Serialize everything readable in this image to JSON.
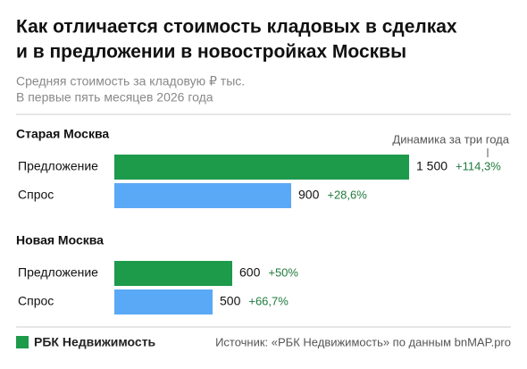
{
  "chart_data": {
    "type": "bar",
    "orientation": "horizontal",
    "title": [
      "Как отличается стоимость кладовых в сделках",
      "и в предложении в новостройках Москвы"
    ],
    "subtitle": [
      "Средняя стоимость за кладовую ₽ тыс.",
      "В первые пять месяцев 2026 года"
    ],
    "change_title": "Динамика за три года",
    "colors": [
      "#1e9a4b",
      "#5aa9f6"
    ],
    "groups": [
      {
        "name": "Старая Москва",
        "categories": [
          "Предложение",
          "Спрос"
        ],
        "values": [
          1500,
          900
        ],
        "value_labels": [
          "1 500",
          "900"
        ],
        "changes": [
          114.3,
          28.6
        ],
        "change_labels": [
          "+114,3%",
          "+28,6%"
        ]
      },
      {
        "name": "Новая Москва",
        "categories": [
          "Предложение",
          "Спрос"
        ],
        "values": [
          600,
          500
        ],
        "changes": [
          50,
          66.7
        ],
        "change_labels": [
          "+50%",
          "+66,7%"
        ]
      }
    ],
    "brand": "РБК Недвижимость",
    "source": "Источник: «РБК Недвижимость» по данным bnMAP.pro"
  }
}
